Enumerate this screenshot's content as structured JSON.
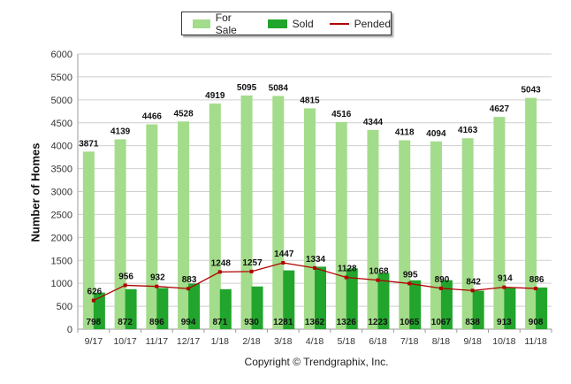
{
  "chart_data": {
    "type": "bar",
    "categories": [
      "9/17",
      "10/17",
      "11/17",
      "12/17",
      "1/18",
      "2/18",
      "3/18",
      "4/18",
      "5/18",
      "6/18",
      "7/18",
      "8/18",
      "9/18",
      "10/18",
      "11/18"
    ],
    "series": [
      {
        "name": "For Sale",
        "type": "bar",
        "color": "#a3dc8a",
        "values": [
          3871,
          4139,
          4466,
          4528,
          4919,
          5095,
          5084,
          4815,
          4516,
          4344,
          4118,
          4094,
          4163,
          4627,
          5043
        ]
      },
      {
        "name": "Sold",
        "type": "bar",
        "color": "#22a52c",
        "values": [
          798,
          872,
          896,
          994,
          871,
          930,
          1281,
          1362,
          1326,
          1223,
          1065,
          1067,
          838,
          913,
          908
        ]
      },
      {
        "name": "Pended",
        "type": "line",
        "color": "#b00000",
        "values": [
          626,
          956,
          932,
          883,
          1248,
          1257,
          1447,
          1334,
          1128,
          1068,
          995,
          890,
          842,
          914,
          886
        ]
      }
    ],
    "ylabel": "Number of Homes",
    "xlabel": "",
    "ylim": [
      0,
      6000
    ],
    "yticks": [
      0,
      500,
      1000,
      1500,
      2000,
      2500,
      3000,
      3500,
      4000,
      4500,
      5000,
      5500,
      6000
    ],
    "grid": true,
    "legend_position": "top-center"
  },
  "legend": {
    "for_sale": "For Sale",
    "sold": "Sold",
    "pended": "Pended"
  },
  "copyright": "Copyright © Trendgraphix, Inc."
}
